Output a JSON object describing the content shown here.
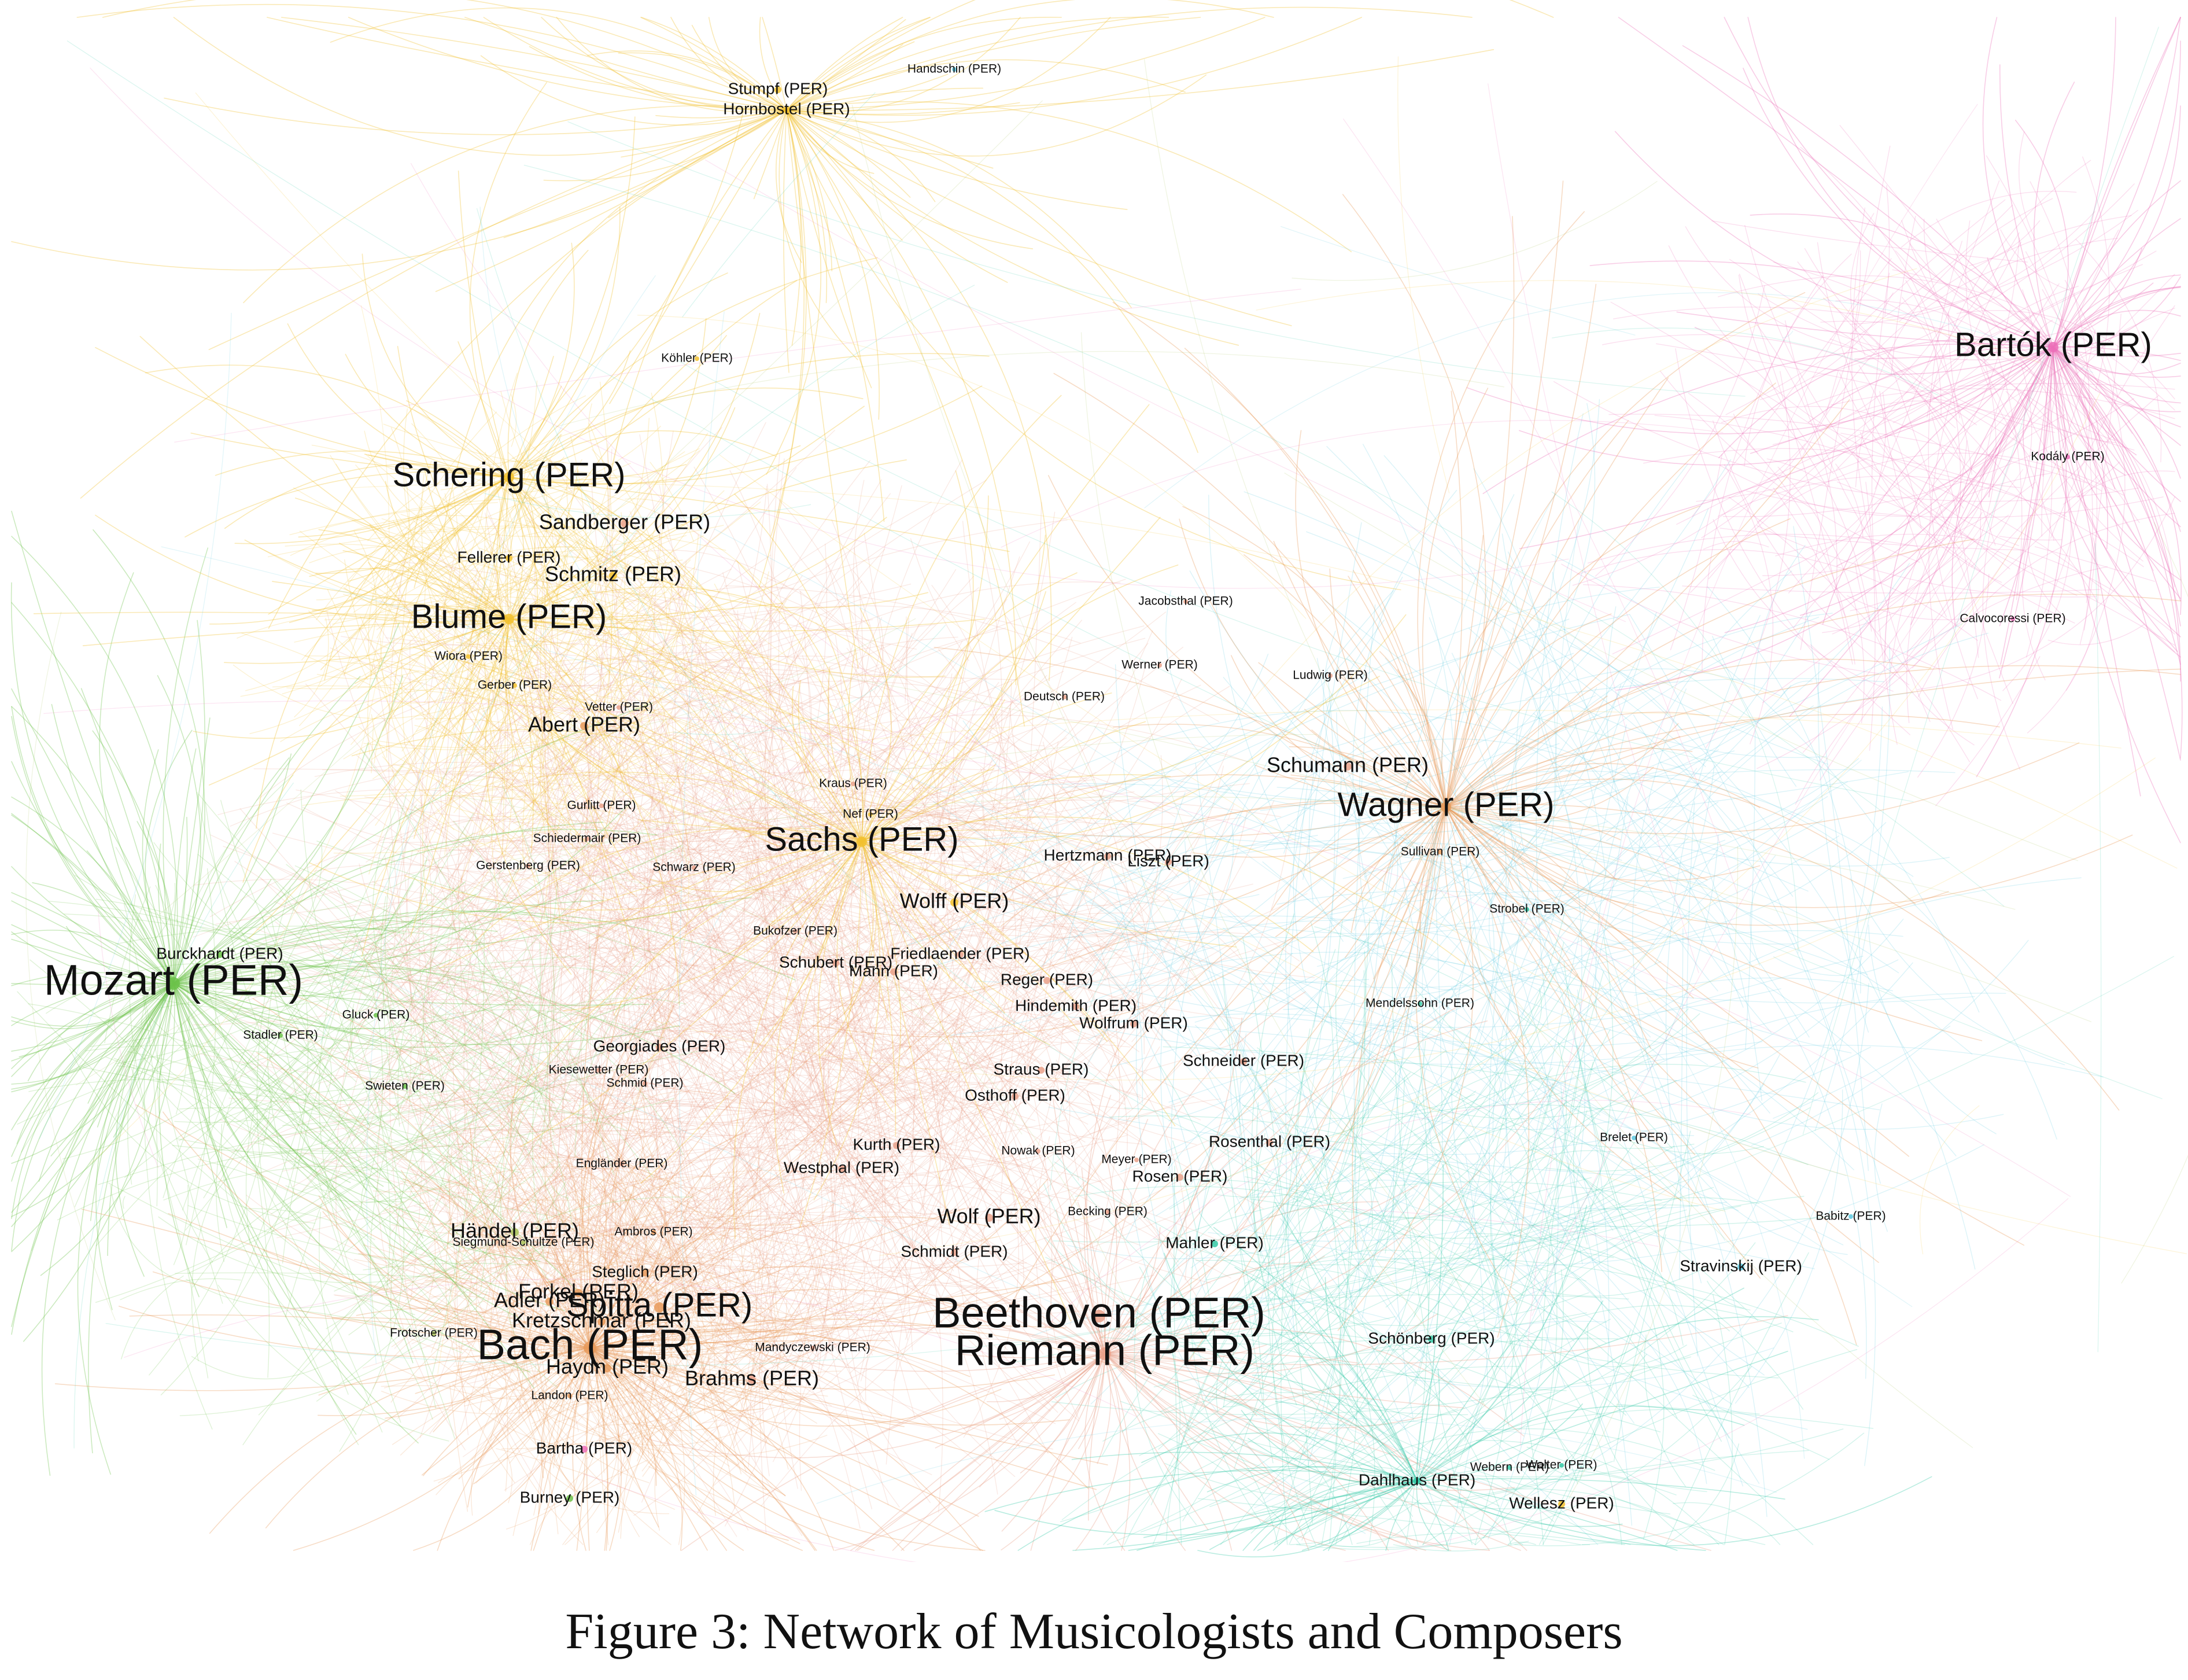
{
  "figure": {
    "caption": "Figure 3: Network of Musicologists and Composers"
  },
  "network": {
    "node_suffix": "(PER)",
    "colors": {
      "yellow": "#f2c12e",
      "orange": "#e89a5b",
      "green": "#6cc24a",
      "teal": "#34c9a6",
      "cyan": "#5bc8e0",
      "pink": "#ec6fb8",
      "salmon": "#e9a189",
      "olive": "#a9c35a"
    },
    "nodes": [
      {
        "id": "mozart",
        "label": "Mozart (PER)",
        "size": "xl",
        "color": "green"
      },
      {
        "id": "bach",
        "label": "Bach (PER)",
        "size": "xl",
        "color": "orange"
      },
      {
        "id": "beethoven",
        "label": "Beethoven (PER)",
        "size": "xl",
        "color": "salmon"
      },
      {
        "id": "riemann",
        "label": "Riemann (PER)",
        "size": "xl",
        "color": "salmon"
      },
      {
        "id": "sachs",
        "label": "Sachs (PER)",
        "size": "l",
        "color": "yellow"
      },
      {
        "id": "wagner",
        "label": "Wagner (PER)",
        "size": "l",
        "color": "orange"
      },
      {
        "id": "schering",
        "label": "Schering (PER)",
        "size": "l",
        "color": "yellow"
      },
      {
        "id": "blume",
        "label": "Blume (PER)",
        "size": "l",
        "color": "yellow"
      },
      {
        "id": "bartok",
        "label": "Bartók (PER)",
        "size": "l",
        "color": "pink"
      },
      {
        "id": "spitta",
        "label": "Spitta (PER)",
        "size": "l",
        "color": "orange"
      },
      {
        "id": "abert",
        "label": "Abert (PER)",
        "size": "m",
        "color": "orange"
      },
      {
        "id": "sandberger",
        "label": "Sandberger (PER)",
        "size": "m",
        "color": "salmon"
      },
      {
        "id": "fellerer",
        "label": "Fellerer (PER)",
        "size": "s",
        "color": "yellow"
      },
      {
        "id": "schmitz",
        "label": "Schmitz (PER)",
        "size": "m",
        "color": "yellow"
      },
      {
        "id": "schumann",
        "label": "Schumann (PER)",
        "size": "m",
        "color": "salmon"
      },
      {
        "id": "wolff",
        "label": "Wolff (PER)",
        "size": "m",
        "color": "yellow"
      },
      {
        "id": "kretzschmar",
        "label": "Kretzschmar (PER)",
        "size": "m",
        "color": "orange"
      },
      {
        "id": "haydn",
        "label": "Haydn (PER)",
        "size": "m",
        "color": "orange"
      },
      {
        "id": "brahms",
        "label": "Brahms (PER)",
        "size": "m",
        "color": "salmon"
      },
      {
        "id": "adler",
        "label": "Adler (PER)",
        "size": "m",
        "color": "orange"
      },
      {
        "id": "forkel",
        "label": "Forkel (PER)",
        "size": "m",
        "color": "orange"
      },
      {
        "id": "haendel",
        "label": "Händel (PER)",
        "size": "m",
        "color": "olive"
      },
      {
        "id": "wolf",
        "label": "Wolf (PER)",
        "size": "m",
        "color": "salmon"
      },
      {
        "id": "bartha",
        "label": "Bartha (PER)",
        "size": "s",
        "color": "pink"
      },
      {
        "id": "burney",
        "label": "Burney (PER)",
        "size": "s",
        "color": "green"
      },
      {
        "id": "dahlhaus",
        "label": "Dahlhaus (PER)",
        "size": "s",
        "color": "teal"
      },
      {
        "id": "wellesz",
        "label": "Wellesz (PER)",
        "size": "s",
        "color": "yellow"
      },
      {
        "id": "schoenberg",
        "label": "Schönberg (PER)",
        "size": "s",
        "color": "teal"
      },
      {
        "id": "stravinskij",
        "label": "Stravinskij (PER)",
        "size": "s",
        "color": "cyan"
      },
      {
        "id": "stumpf",
        "label": "Stumpf (PER)",
        "size": "s",
        "color": "yellow"
      },
      {
        "id": "hornbostel",
        "label": "Hornbostel (PER)",
        "size": "s",
        "color": "yellow"
      },
      {
        "id": "burckhardt",
        "label": "Burckhardt (PER)",
        "size": "s",
        "color": "green"
      },
      {
        "id": "georgiades",
        "label": "Georgiades (PER)",
        "size": "s",
        "color": "salmon"
      },
      {
        "id": "schubert",
        "label": "Schubert (PER)",
        "size": "s",
        "color": "salmon"
      },
      {
        "id": "mann",
        "label": "Mann (PER)",
        "size": "s",
        "color": "salmon"
      },
      {
        "id": "friedlaender",
        "label": "Friedlaender (PER)",
        "size": "s",
        "color": "salmon"
      },
      {
        "id": "reger",
        "label": "Reger (PER)",
        "size": "s",
        "color": "salmon"
      },
      {
        "id": "hindemith",
        "label": "Hindemith (PER)",
        "size": "s",
        "color": "salmon"
      },
      {
        "id": "wolfrum",
        "label": "Wolfrum (PER)",
        "size": "s",
        "color": "salmon"
      },
      {
        "id": "hertzmann",
        "label": "Hertzmann (PER)",
        "size": "s",
        "color": "salmon"
      },
      {
        "id": "liszt",
        "label": "Liszt (PER)",
        "size": "s",
        "color": "salmon"
      },
      {
        "id": "schneider",
        "label": "Schneider (PER)",
        "size": "s",
        "color": "salmon"
      },
      {
        "id": "straus",
        "label": "Straus (PER)",
        "size": "s",
        "color": "salmon"
      },
      {
        "id": "osthoff",
        "label": "Osthoff (PER)",
        "size": "s",
        "color": "salmon"
      },
      {
        "id": "kurth",
        "label": "Kurth (PER)",
        "size": "s",
        "color": "salmon"
      },
      {
        "id": "westphal",
        "label": "Westphal (PER)",
        "size": "s",
        "color": "salmon"
      },
      {
        "id": "rosenthal",
        "label": "Rosenthal (PER)",
        "size": "s",
        "color": "salmon"
      },
      {
        "id": "rosen",
        "label": "Rosen (PER)",
        "size": "s",
        "color": "salmon"
      },
      {
        "id": "mahler",
        "label": "Mahler (PER)",
        "size": "s",
        "color": "teal"
      },
      {
        "id": "schmidt",
        "label": "Schmidt (PER)",
        "size": "s",
        "color": "salmon"
      },
      {
        "id": "steglich",
        "label": "Steglich (PER)",
        "size": "s",
        "color": "orange"
      },
      {
        "id": "bukofzer",
        "label": "Bukofzer (PER)",
        "size": "xs",
        "color": "salmon"
      },
      {
        "id": "gluck",
        "label": "Gluck (PER)",
        "size": "xs",
        "color": "green"
      },
      {
        "id": "stadler",
        "label": "Stadler (PER)",
        "size": "xs",
        "color": "green"
      },
      {
        "id": "swieten",
        "label": "Swieten (PER)",
        "size": "xs",
        "color": "green"
      },
      {
        "id": "kiesewetter",
        "label": "Kiesewetter (PER)",
        "size": "xs",
        "color": "salmon"
      },
      {
        "id": "schmid",
        "label": "Schmid (PER)",
        "size": "xs",
        "color": "salmon"
      },
      {
        "id": "wiora",
        "label": "Wiora (PER)",
        "size": "xs",
        "color": "yellow"
      },
      {
        "id": "gerber",
        "label": "Gerber (PER)",
        "size": "xs",
        "color": "yellow"
      },
      {
        "id": "vetter",
        "label": "Vetter (PER)",
        "size": "xs",
        "color": "salmon"
      },
      {
        "id": "gurlitt",
        "label": "Gurlitt (PER)",
        "size": "xs",
        "color": "salmon"
      },
      {
        "id": "schiedermair",
        "label": "Schiedermair (PER)",
        "size": "xs",
        "color": "salmon"
      },
      {
        "id": "gerstenberg",
        "label": "Gerstenberg (PER)",
        "size": "xs",
        "color": "salmon"
      },
      {
        "id": "engelaender",
        "label": "Engländer (PER)",
        "size": "xs",
        "color": "salmon"
      },
      {
        "id": "nowak",
        "label": "Nowak (PER)",
        "size": "xs",
        "color": "salmon"
      },
      {
        "id": "meyer",
        "label": "Meyer (PER)",
        "size": "xs",
        "color": "salmon"
      },
      {
        "id": "becking",
        "label": "Becking (PER)",
        "size": "xs",
        "color": "salmon"
      },
      {
        "id": "mandyczewski",
        "label": "Mandyczewski (PER)",
        "size": "xs",
        "color": "salmon"
      },
      {
        "id": "landon",
        "label": "Landon (PER)",
        "size": "xs",
        "color": "orange"
      },
      {
        "id": "frotscher",
        "label": "Frotscher (PER)",
        "size": "xs",
        "color": "olive"
      },
      {
        "id": "ambros",
        "label": "Ambros (PER)",
        "size": "xs",
        "color": "orange"
      },
      {
        "id": "siegmund_schultze",
        "label": "Siegmund-Schultze (PER)",
        "size": "xs",
        "color": "olive"
      },
      {
        "id": "jacobsthal",
        "label": "Jacobsthal (PER)",
        "size": "xs",
        "color": "salmon"
      },
      {
        "id": "werner",
        "label": "Werner (PER)",
        "size": "xs",
        "color": "salmon"
      },
      {
        "id": "ludwig",
        "label": "Ludwig (PER)",
        "size": "xs",
        "color": "salmon"
      },
      {
        "id": "strobel",
        "label": "Strobel (PER)",
        "size": "xs",
        "color": "teal"
      },
      {
        "id": "mendelssohn",
        "label": "Mendelssohn (PER)",
        "size": "xs",
        "color": "teal"
      },
      {
        "id": "brelet",
        "label": "Brelet (PER)",
        "size": "xs",
        "color": "cyan"
      },
      {
        "id": "babitz",
        "label": "Babitz (PER)",
        "size": "xs",
        "color": "cyan"
      },
      {
        "id": "kodaly",
        "label": "Kodály (PER)",
        "size": "xs",
        "color": "pink"
      },
      {
        "id": "calvocoressi",
        "label": "Calvocoressi (PER)",
        "size": "xs",
        "color": "pink"
      },
      {
        "id": "nef",
        "label": "Nef (PER)",
        "size": "xs",
        "color": "yellow"
      },
      {
        "id": "koehler",
        "label": "Köhler (PER)",
        "size": "xs",
        "color": "yellow"
      },
      {
        "id": "handschin",
        "label": "Handschin (PER)",
        "size": "xs",
        "color": "cyan"
      },
      {
        "id": "webern",
        "label": "Webern (PER)",
        "size": "xs",
        "color": "teal"
      },
      {
        "id": "walter",
        "label": "Walter (PER)",
        "size": "xs",
        "color": "teal"
      },
      {
        "id": "sullivan",
        "label": "Sullivan (PER)",
        "size": "xs",
        "color": "orange"
      },
      {
        "id": "schwarz",
        "label": "Schwarz (PER)",
        "size": "xs",
        "color": "salmon"
      },
      {
        "id": "kraus",
        "label": "Kraus (PER)",
        "size": "xs",
        "color": "salmon"
      },
      {
        "id": "deutsch",
        "label": "Deutsch (PER)",
        "size": "xs",
        "color": "salmon"
      }
    ]
  }
}
